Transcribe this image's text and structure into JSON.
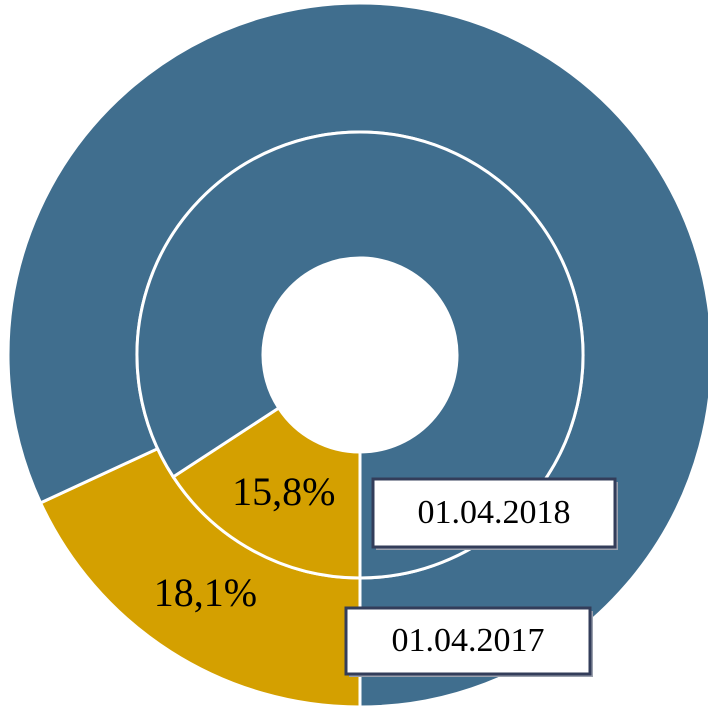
{
  "chart_data": {
    "type": "donut",
    "rings": [
      {
        "name": "01.04.2017",
        "values": [
          18.1,
          81.9
        ],
        "value_labels": [
          "18,1%",
          null
        ],
        "colors": [
          "#d4a000",
          "#406e8e"
        ]
      },
      {
        "name": "01.04.2018",
        "values": [
          15.8,
          84.2
        ],
        "value_labels": [
          "15,8%",
          null
        ],
        "colors": [
          "#d4a000",
          "#406e8e"
        ]
      }
    ]
  }
}
